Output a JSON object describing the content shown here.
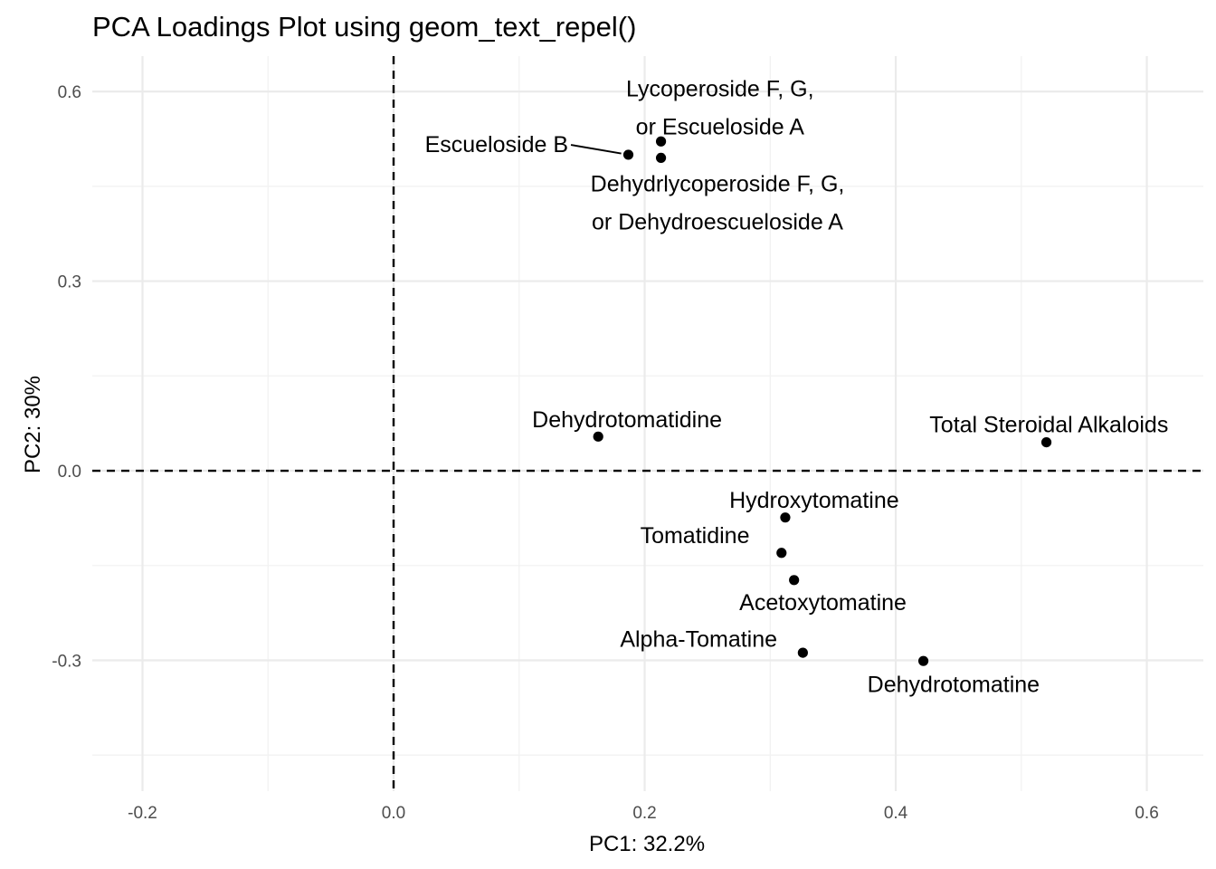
{
  "chart_data": {
    "type": "scatter",
    "title": "PCA Loadings Plot using geom_text_repel()",
    "xlabel": "PC1: 32.2%",
    "ylabel": "PC2: 30%",
    "xlim": [
      -0.24,
      0.645
    ],
    "ylim": [
      -0.507,
      0.656
    ],
    "x_ticks": [
      -0.2,
      0.0,
      0.2,
      0.4,
      0.6
    ],
    "x_tick_labels": [
      "-0.2",
      "0.0",
      "0.2",
      "0.4",
      "0.6"
    ],
    "y_ticks": [
      -0.3,
      0.0,
      0.3,
      0.6
    ],
    "y_tick_labels": [
      "-0.3",
      "0.0",
      "0.3",
      "0.6"
    ],
    "x_minor": [
      -0.1,
      0.1,
      0.3,
      0.5
    ],
    "y_minor": [
      -0.45,
      -0.15,
      0.15,
      0.45
    ],
    "reference_lines": {
      "x": 0,
      "y": 0,
      "style": "dashed"
    },
    "grid": true,
    "legend": "none",
    "points": [
      {
        "label": [
          "Lycoperoside F, G,",
          "or Escueloside A"
        ],
        "x": 0.213,
        "y": 0.521,
        "lx": 0.26,
        "ly": 0.575,
        "seg": false
      },
      {
        "label": [
          "Escueloside B"
        ],
        "x": 0.187,
        "y": 0.5,
        "lx": 0.082,
        "ly": 0.517,
        "seg": true
      },
      {
        "label": [
          "Dehydrlycoperoside F, G,",
          "or Dehydroescueloside A"
        ],
        "x": 0.213,
        "y": 0.495,
        "lx": 0.258,
        "ly": 0.425,
        "seg": false
      },
      {
        "label": [
          "Dehydrotomatidine"
        ],
        "x": 0.163,
        "y": 0.054,
        "lx": 0.186,
        "ly": 0.082,
        "seg": false
      },
      {
        "label": [
          "Total Steroidal Alkaloids"
        ],
        "x": 0.52,
        "y": 0.045,
        "lx": 0.522,
        "ly": 0.074,
        "seg": false
      },
      {
        "label": [
          "Hydroxytomatine"
        ],
        "x": 0.312,
        "y": -0.074,
        "lx": 0.335,
        "ly": -0.046,
        "seg": false
      },
      {
        "label": [
          "Tomatidine"
        ],
        "x": 0.309,
        "y": -0.13,
        "lx": 0.24,
        "ly": -0.102,
        "seg": false
      },
      {
        "label": [
          "Acetoxytomatine"
        ],
        "x": 0.319,
        "y": -0.173,
        "lx": 0.342,
        "ly": -0.208,
        "seg": false
      },
      {
        "label": [
          "Alpha-Tomatine"
        ],
        "x": 0.326,
        "y": -0.288,
        "lx": 0.243,
        "ly": -0.266,
        "seg": false
      },
      {
        "label": [
          "Dehydrotomatine"
        ],
        "x": 0.422,
        "y": -0.301,
        "lx": 0.446,
        "ly": -0.337,
        "seg": false
      }
    ]
  }
}
